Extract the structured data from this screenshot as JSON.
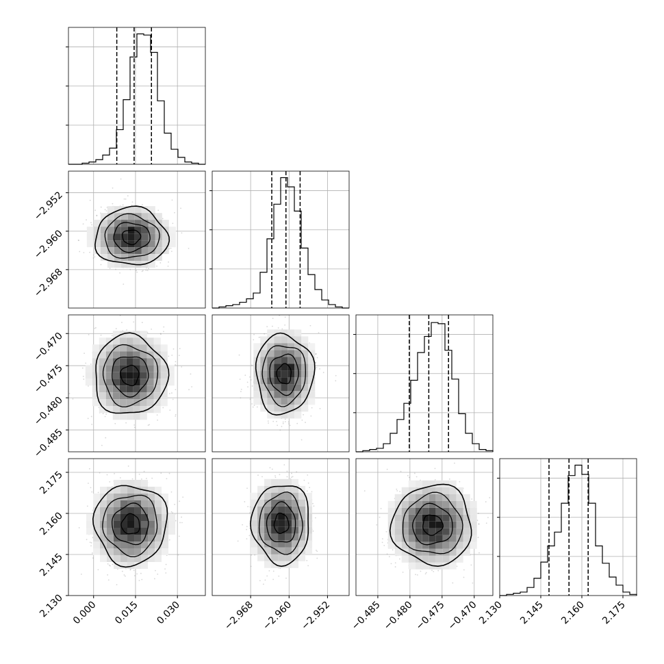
{
  "chart_data": {
    "type": "corner",
    "parameters": [
      {
        "range": [
          -0.009,
          0.04
        ],
        "ticks": [
          0.0,
          0.015,
          0.03
        ],
        "tick_labels": [
          "0.000",
          "0.015",
          "0.030"
        ],
        "mean": 0.0145,
        "std": 0.0065,
        "quantiles": [
          0.0083,
          0.0145,
          0.0207
        ],
        "hist": [
          0,
          0,
          1,
          2,
          4,
          8,
          14,
          30,
          56,
          93,
          113,
          112,
          97,
          55,
          27,
          13,
          6,
          2,
          1,
          0
        ],
        "hist_max": 113
      },
      {
        "range": [
          -2.976,
          -2.9475
        ],
        "ticks": [
          -2.968,
          -2.96,
          -2.952
        ],
        "tick_labels": [
          "−2.968",
          "−2.960",
          "−2.952"
        ],
        "mean": -2.96065,
        "std": 0.003,
        "quantiles": [
          -2.9636,
          -2.96065,
          -2.9577
        ],
        "hist": [
          0,
          1,
          2,
          3,
          5,
          8,
          13,
          31,
          60,
          90,
          113,
          105,
          84,
          52,
          29,
          16,
          7,
          3,
          1,
          0
        ],
        "hist_max": 113
      },
      {
        "range": [
          -0.4884,
          -0.4671
        ],
        "ticks": [
          -0.485,
          -0.48,
          -0.475,
          -0.47
        ],
        "tick_labels": [
          "−0.485",
          "−0.480",
          "−0.475",
          "−0.470"
        ],
        "mean": -0.47707,
        "std": 0.0031,
        "quantiles": [
          -0.4801,
          -0.47707,
          -0.474
        ],
        "hist": [
          0,
          1,
          2,
          3,
          7,
          16,
          28,
          42,
          62,
          86,
          100,
          112,
          111,
          88,
          63,
          33,
          16,
          7,
          2,
          1
        ],
        "hist_max": 113
      },
      {
        "range": [
          2.13,
          2.18
        ],
        "ticks": [
          2.13,
          2.145,
          2.16,
          2.175
        ],
        "tick_labels": [
          "2.130",
          "2.145",
          "2.160",
          "2.175"
        ],
        "mean": 2.1553,
        "std": 0.0073,
        "quantiles": [
          2.148,
          2.1553,
          2.1623
        ],
        "hist": [
          0,
          1,
          2,
          3,
          7,
          15,
          29,
          43,
          55,
          80,
          104,
          113,
          105,
          80,
          43,
          28,
          16,
          9,
          3,
          1
        ],
        "hist_max": 113
      }
    ],
    "pairs": [
      {
        "row": 1,
        "col": 0,
        "center": [
          0.0135,
          -2.9612
        ]
      },
      {
        "row": 2,
        "col": 0,
        "center": [
          0.013,
          -0.4765
        ]
      },
      {
        "row": 2,
        "col": 1,
        "center": [
          -2.961,
          -0.4763
        ]
      },
      {
        "row": 3,
        "col": 0,
        "center": [
          0.0133,
          2.156
        ]
      },
      {
        "row": 3,
        "col": 1,
        "center": [
          -2.9616,
          2.1563
        ]
      },
      {
        "row": 3,
        "col": 2,
        "center": [
          -0.4765,
          2.1558
        ]
      }
    ],
    "grid": true
  }
}
